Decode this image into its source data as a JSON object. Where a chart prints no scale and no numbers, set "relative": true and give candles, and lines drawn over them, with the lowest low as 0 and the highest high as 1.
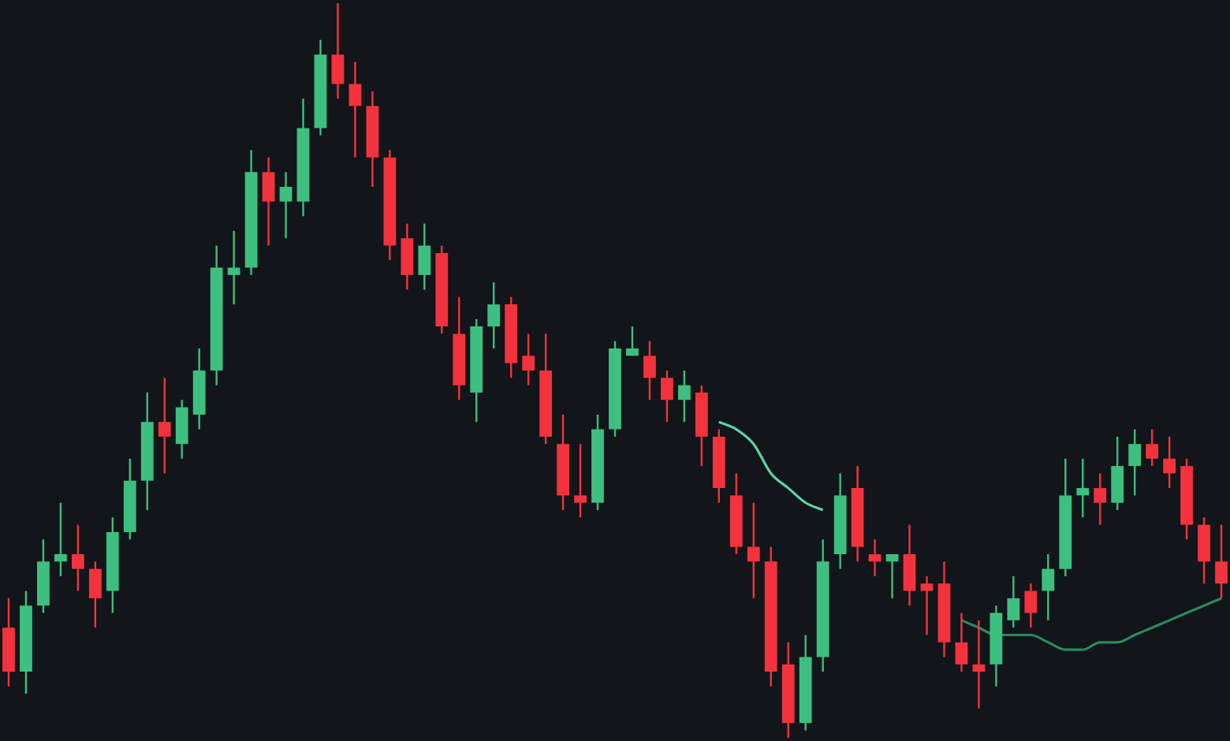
{
  "chart_data": {
    "type": "candlestick",
    "relative": true,
    "marker": "none",
    "legend": false,
    "categories": [
      null,
      null,
      null,
      null,
      null,
      null,
      null,
      null,
      null,
      null,
      null,
      null,
      null,
      null,
      null,
      null,
      null,
      null,
      null,
      null,
      null,
      null,
      null,
      null,
      null,
      null,
      null,
      null,
      null,
      null,
      null,
      null,
      null,
      null,
      null,
      null,
      null,
      null,
      null,
      null,
      null,
      null,
      null,
      null,
      null,
      null,
      null,
      null,
      null,
      null,
      null,
      null,
      null,
      null,
      null,
      null,
      null,
      null,
      null,
      null,
      null,
      null,
      null,
      null,
      null,
      null,
      null,
      null,
      null,
      null,
      null
    ],
    "ohlc": [
      [
        0.15,
        0.19,
        0.07,
        0.09
      ],
      [
        0.09,
        0.2,
        0.06,
        0.18
      ],
      [
        0.18,
        0.27,
        0.17,
        0.24
      ],
      [
        0.24,
        0.32,
        0.22,
        0.25
      ],
      [
        0.25,
        0.29,
        0.2,
        0.23
      ],
      [
        0.23,
        0.24,
        0.15,
        0.19
      ],
      [
        0.2,
        0.3,
        0.17,
        0.28
      ],
      [
        0.28,
        0.38,
        0.27,
        0.35
      ],
      [
        0.35,
        0.47,
        0.31,
        0.43
      ],
      [
        0.43,
        0.49,
        0.36,
        0.41
      ],
      [
        0.4,
        0.46,
        0.38,
        0.45
      ],
      [
        0.44,
        0.53,
        0.42,
        0.5
      ],
      [
        0.5,
        0.67,
        0.48,
        0.64
      ],
      [
        0.63,
        0.69,
        0.59,
        0.64
      ],
      [
        0.64,
        0.8,
        0.63,
        0.77
      ],
      [
        0.77,
        0.79,
        0.67,
        0.73
      ],
      [
        0.73,
        0.77,
        0.68,
        0.75
      ],
      [
        0.73,
        0.87,
        0.71,
        0.83
      ],
      [
        0.83,
        0.95,
        0.82,
        0.93
      ],
      [
        0.93,
        1,
        0.87,
        0.89
      ],
      [
        0.89,
        0.92,
        0.79,
        0.86
      ],
      [
        0.86,
        0.88,
        0.75,
        0.79
      ],
      [
        0.79,
        0.8,
        0.65,
        0.67
      ],
      [
        0.68,
        0.7,
        0.61,
        0.63
      ],
      [
        0.63,
        0.7,
        0.61,
        0.67
      ],
      [
        0.66,
        0.67,
        0.55,
        0.56
      ],
      [
        0.55,
        0.6,
        0.46,
        0.48
      ],
      [
        0.47,
        0.57,
        0.43,
        0.56
      ],
      [
        0.56,
        0.62,
        0.53,
        0.59
      ],
      [
        0.59,
        0.6,
        0.49,
        0.51
      ],
      [
        0.52,
        0.55,
        0.48,
        0.5
      ],
      [
        0.5,
        0.55,
        0.4,
        0.41
      ],
      [
        0.4,
        0.44,
        0.31,
        0.33
      ],
      [
        0.33,
        0.4,
        0.3,
        0.32
      ],
      [
        0.32,
        0.44,
        0.31,
        0.42
      ],
      [
        0.42,
        0.54,
        0.41,
        0.53
      ],
      [
        0.52,
        0.56,
        0.52,
        0.53
      ],
      [
        0.52,
        0.54,
        0.46,
        0.49
      ],
      [
        0.49,
        0.5,
        0.43,
        0.46
      ],
      [
        0.46,
        0.5,
        0.43,
        0.48
      ],
      [
        0.47,
        0.48,
        0.37,
        0.41
      ],
      [
        0.41,
        0.42,
        0.32,
        0.34
      ],
      [
        0.33,
        0.36,
        0.25,
        0.26
      ],
      [
        0.26,
        0.32,
        0.19,
        0.24
      ],
      [
        0.24,
        0.26,
        0.07,
        0.09
      ],
      [
        0.1,
        0.13,
        0,
        0.02
      ],
      [
        0.02,
        0.14,
        0.01,
        0.11
      ],
      [
        0.11,
        0.27,
        0.09,
        0.24
      ],
      [
        0.25,
        0.36,
        0.23,
        0.33
      ],
      [
        0.34,
        0.37,
        0.24,
        0.26
      ],
      [
        0.25,
        0.27,
        0.22,
        0.24
      ],
      [
        0.24,
        0.25,
        0.19,
        0.25
      ],
      [
        0.25,
        0.29,
        0.18,
        0.2
      ],
      [
        0.21,
        0.22,
        0.14,
        0.2
      ],
      [
        0.21,
        0.24,
        0.11,
        0.13
      ],
      [
        0.13,
        0.17,
        0.09,
        0.1
      ],
      [
        0.1,
        0.16,
        0.04,
        0.09
      ],
      [
        0.1,
        0.18,
        0.07,
        0.17
      ],
      [
        0.16,
        0.22,
        0.15,
        0.19
      ],
      [
        0.2,
        0.21,
        0.15,
        0.17
      ],
      [
        0.2,
        0.25,
        0.16,
        0.23
      ],
      [
        0.23,
        0.38,
        0.22,
        0.33
      ],
      [
        0.33,
        0.38,
        0.3,
        0.34
      ],
      [
        0.34,
        0.36,
        0.29,
        0.32
      ],
      [
        0.32,
        0.41,
        0.31,
        0.37
      ],
      [
        0.37,
        0.42,
        0.33,
        0.4
      ],
      [
        0.4,
        0.42,
        0.37,
        0.38
      ],
      [
        0.38,
        0.41,
        0.34,
        0.36
      ],
      [
        0.37,
        0.38,
        0.27,
        0.29
      ],
      [
        0.29,
        0.3,
        0.21,
        0.24
      ],
      [
        0.24,
        0.29,
        0.19,
        0.21
      ]
    ],
    "colors": [
      "#f2333d",
      "#3dbf7f",
      "#3dbf7f",
      "#3dbf7f",
      "#f2333d",
      "#f2333d",
      "#3dbf7f",
      "#3dbf7f",
      "#3dbf7f",
      "#f2333d",
      "#3dbf7f",
      "#3dbf7f",
      "#3dbf7f",
      "#3dbf7f",
      "#3dbf7f",
      "#f2333d",
      "#3dbf7f",
      "#3dbf7f",
      "#3dbf7f",
      "#f2333d",
      "#f2333d",
      "#f2333d",
      "#f2333d",
      "#f2333d",
      "#3dbf7f",
      "#f2333d",
      "#f2333d",
      "#3dbf7f",
      "#3dbf7f",
      "#f2333d",
      "#f2333d",
      "#f2333d",
      "#f2333d",
      "#f2333d",
      "#3dbf7f",
      "#3dbf7f",
      "#3dbf7f",
      "#f2333d",
      "#f2333d",
      "#3dbf7f",
      "#f2333d",
      "#f2333d",
      "#f2333d",
      "#f2333d",
      "#f2333d",
      "#f2333d",
      "#3dbf7f",
      "#3dbf7f",
      "#3dbf7f",
      "#f2333d",
      "#f2333d",
      "#3dbf7f",
      "#f2333d",
      "#f2333d",
      "#f2333d",
      "#f2333d",
      "#f2333d",
      "#3dbf7f",
      "#3dbf7f",
      "#f2333d",
      "#3dbf7f",
      "#3dbf7f",
      "#3dbf7f",
      "#f2333d",
      "#3dbf7f",
      "#3dbf7f",
      "#f2333d",
      "#f2333d",
      "#f2333d",
      "#f2333d",
      "#f2333d"
    ],
    "series": [
      {
        "type": "line",
        "color": "#5fd3a3",
        "values": [
          null,
          null,
          null,
          null,
          null,
          null,
          null,
          null,
          null,
          null,
          null,
          null,
          null,
          null,
          null,
          null,
          null,
          null,
          null,
          null,
          null,
          null,
          null,
          null,
          null,
          null,
          null,
          null,
          null,
          null,
          null,
          null,
          null,
          null,
          null,
          null,
          null,
          null,
          null,
          null,
          null,
          0.43,
          0.42,
          0.4,
          0.36,
          0.34,
          0.32,
          0.31,
          null,
          null,
          null,
          null,
          null,
          null,
          null,
          null,
          null,
          null,
          null,
          null,
          null,
          null,
          null,
          null,
          null,
          null,
          null,
          null,
          null,
          null,
          null
        ]
      },
      {
        "type": "line",
        "color": "#2a8a5e",
        "values": [
          null,
          null,
          null,
          null,
          null,
          null,
          null,
          null,
          null,
          null,
          null,
          null,
          null,
          null,
          null,
          null,
          null,
          null,
          null,
          null,
          null,
          null,
          null,
          null,
          null,
          null,
          null,
          null,
          null,
          null,
          null,
          null,
          null,
          null,
          null,
          null,
          null,
          null,
          null,
          null,
          null,
          null,
          null,
          null,
          null,
          null,
          null,
          null,
          null,
          null,
          null,
          null,
          null,
          null,
          null,
          0.16,
          0.15,
          0.14,
          0.14,
          0.14,
          0.13,
          0.12,
          0.12,
          0.13,
          0.13,
          0.14,
          0.15,
          0.16,
          0.17,
          0.18,
          0.19
        ]
      }
    ]
  }
}
